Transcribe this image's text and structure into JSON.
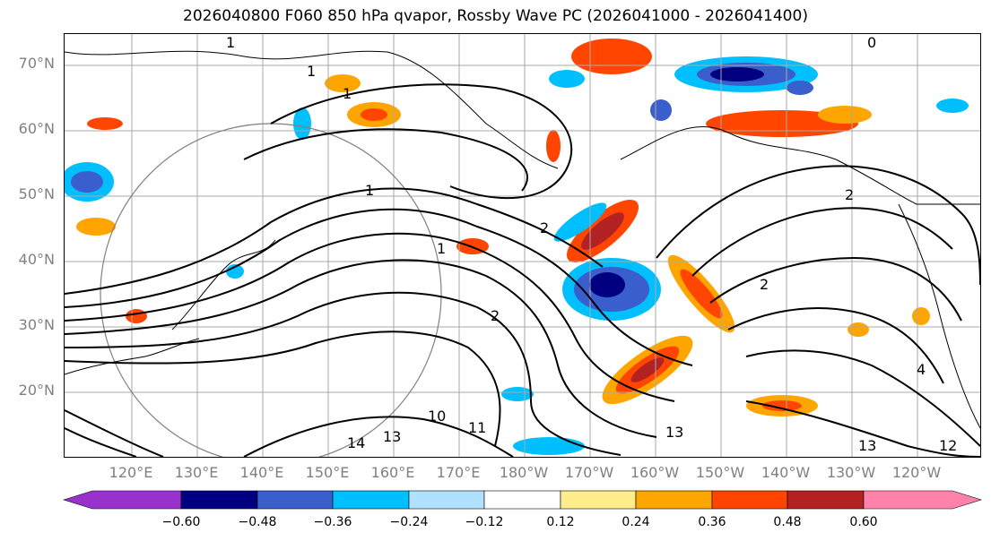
{
  "title": "2026040800 F060 850 hPa qvapor, Rossby Wave PC (2026041000 - 2026041400)",
  "lat_labels": [
    "70°N",
    "60°N",
    "50°N",
    "40°N",
    "30°N",
    "20°N"
  ],
  "lon_labels": [
    "120°E",
    "130°E",
    "140°E",
    "150°E",
    "160°E",
    "170°E",
    "180°W",
    "170°W",
    "160°W",
    "150°W",
    "140°W",
    "130°W",
    "120°W"
  ],
  "colorbar": {
    "colors": [
      "#9932cc",
      "#000080",
      "#3a5fcd",
      "#00bfff",
      "#b0e2ff",
      "#ffffff",
      "#ffec8b",
      "#ffa500",
      "#ff4500",
      "#b22222",
      "#ff82ab"
    ],
    "ticks": [
      "−0.60",
      "−0.48",
      "−0.36",
      "−0.24",
      "−0.12",
      "0.12",
      "0.24",
      "0.36",
      "0.48",
      "0.60"
    ]
  },
  "contour_labels": [
    "0",
    "1",
    "1",
    "1",
    "1",
    "1",
    "2",
    "2",
    "2",
    "2",
    "4",
    "10",
    "11",
    "12",
    "13",
    "13",
    "13",
    "14"
  ],
  "map": {
    "projection": "cylindrical",
    "lat_range": [
      10,
      75
    ],
    "lon_range": [
      113,
      245
    ],
    "field": "850 hPa qvapor with Rossby wave principal component shading"
  }
}
